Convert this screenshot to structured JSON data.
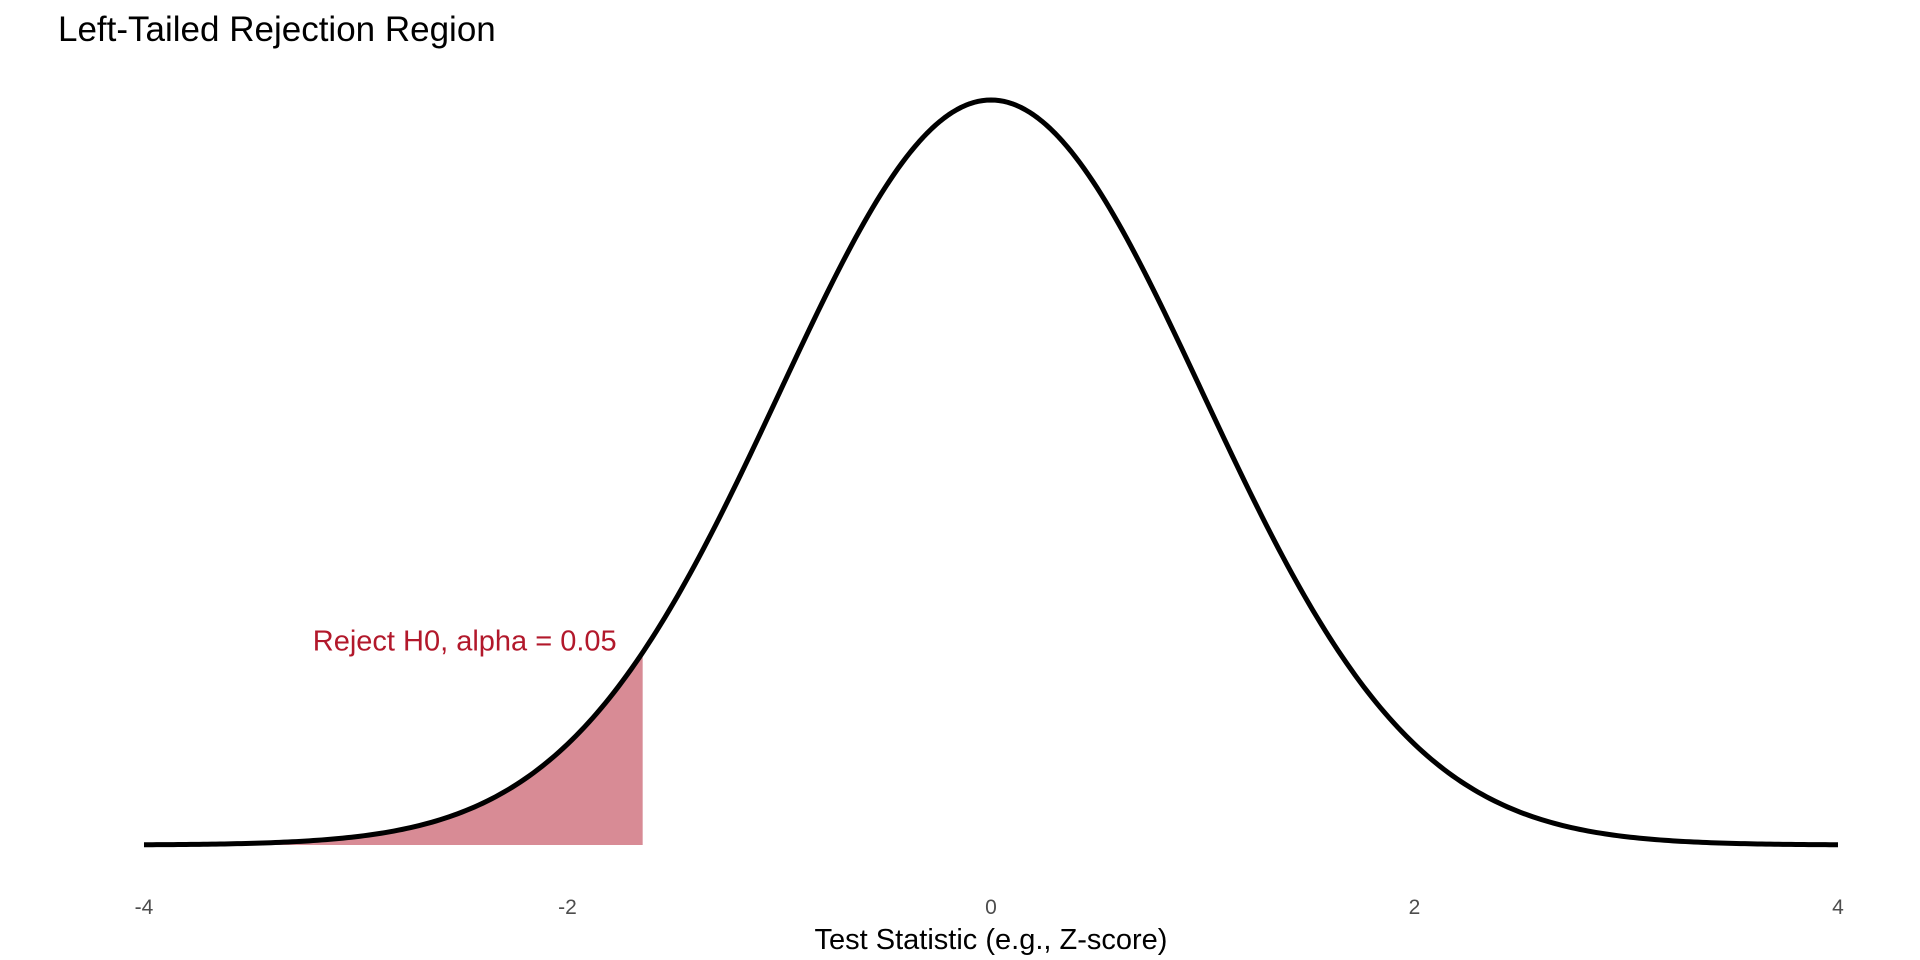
{
  "chart_data": {
    "type": "area",
    "title": "Left-Tailed Rejection Region",
    "xlabel": "Test Statistic (e.g., Z-score)",
    "ylabel": "",
    "xlim": [
      -4,
      4
    ],
    "x_ticks": [
      -4,
      -2,
      0,
      2,
      4
    ],
    "x_tick_labels": [
      "-4",
      "-2",
      "0",
      "2",
      "4"
    ],
    "grid": false,
    "series": [
      {
        "distribution": "standard normal density",
        "x_range": [
          -4,
          4
        ],
        "mean": 0,
        "sd": 1,
        "color": "#000000"
      }
    ],
    "shaded_region": {
      "from": -4,
      "to": -1.645,
      "alpha": 0.05,
      "color": "#b2182b"
    },
    "annotation": {
      "text": "Reject H0, alpha = 0.05",
      "x": -1.645,
      "color": "#b2182b"
    }
  }
}
